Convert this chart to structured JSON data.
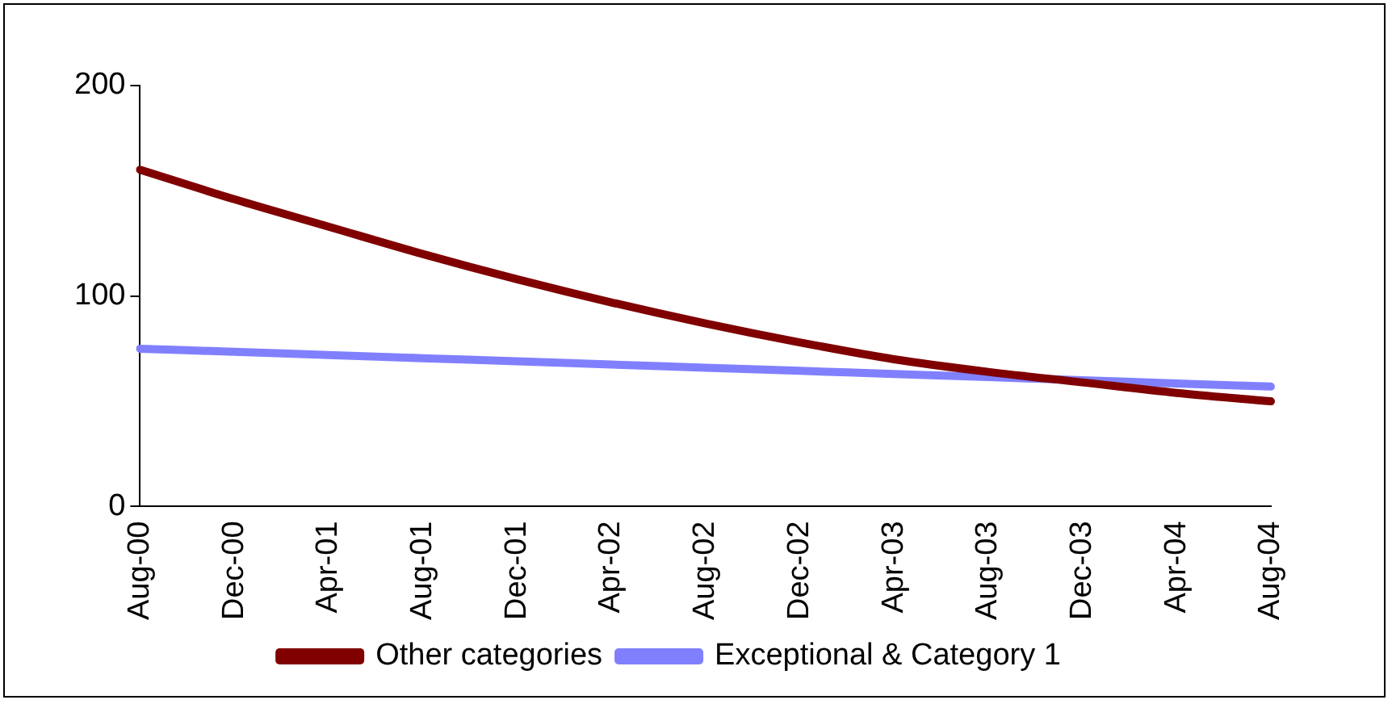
{
  "chart_data": {
    "type": "line",
    "categories": [
      "Aug-00",
      "Dec-00",
      "Apr-01",
      "Aug-01",
      "Dec-01",
      "Apr-02",
      "Aug-02",
      "Dec-02",
      "Apr-03",
      "Aug-03",
      "Dec-03",
      "Apr-04",
      "Aug-04"
    ],
    "series": [
      {
        "name": "Other categories",
        "color": "#800000",
        "values": [
          160,
          146,
          133,
          120,
          108,
          97,
          87,
          78,
          70,
          64,
          59,
          54,
          50
        ]
      },
      {
        "name": "Exceptional & Category 1",
        "color": "#8080ff",
        "values": [
          75,
          73.5,
          72,
          70.5,
          69,
          67.5,
          66,
          64.5,
          63,
          61.5,
          60,
          58.5,
          57
        ]
      }
    ],
    "ylim": [
      0,
      200
    ],
    "yticks": [
      0,
      100,
      200
    ],
    "grid": false,
    "legend": "bottom",
    "marker": "none",
    "line_style": "solid"
  }
}
